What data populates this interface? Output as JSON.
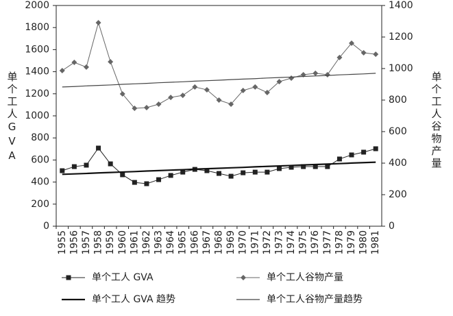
{
  "chart_data": {
    "type": "line",
    "y_label": "单个工人GVA",
    "y2_label": "单个工人谷物产量",
    "categories": [
      "1955",
      "1956",
      "1957",
      "1958",
      "1959",
      "1960",
      "1961",
      "1962",
      "1963",
      "1964",
      "1965",
      "1966",
      "1967",
      "1968",
      "1969",
      "1970",
      "1971",
      "1972",
      "1973",
      "1974",
      "1975",
      "1976",
      "1977",
      "1978",
      "1979",
      "1980",
      "1981"
    ],
    "series": [
      {
        "name": "单个工人 GVA",
        "color": "#222222",
        "marker": "square",
        "line_width": 1,
        "values": [
          503,
          540,
          553,
          708,
          565,
          466,
          397,
          385,
          422,
          460,
          490,
          515,
          503,
          478,
          453,
          484,
          490,
          490,
          522,
          534,
          540,
          540,
          540,
          609,
          646,
          671,
          702
        ]
      },
      {
        "name": "单个工人谷物产量",
        "color": "#666666",
        "marker": "diamond",
        "line_width": 1,
        "axis": "y2",
        "values": [
          987,
          1039,
          1009,
          1291,
          1043,
          839,
          748,
          752,
          774,
          817,
          830,
          883,
          865,
          800,
          774,
          861,
          883,
          848,
          917,
          939,
          961,
          970,
          961,
          1070,
          1161,
          1100,
          1091
        ]
      },
      {
        "name": "单个工人 GVA 趋势",
        "color": "#111111",
        "marker": "none",
        "line_width": 2.2,
        "values": [
          470,
          474,
          478,
          483,
          487,
          491,
          495,
          500,
          504,
          508,
          512,
          517,
          521,
          525,
          529,
          533,
          538,
          542,
          546,
          550,
          555,
          559,
          563,
          567,
          572,
          576,
          580
        ]
      },
      {
        "name": "单个工人谷物产量趋势",
        "color": "#444444",
        "marker": "none",
        "line_width": 1.2,
        "axis": "y2",
        "values": [
          883,
          886,
          890,
          893,
          896,
          900,
          903,
          906,
          910,
          913,
          916,
          920,
          923,
          926,
          930,
          933,
          936,
          940,
          943,
          946,
          950,
          953,
          956,
          960,
          963,
          966,
          970
        ]
      }
    ],
    "ylim": [
      0,
      2000
    ],
    "yticks": [
      0,
      200,
      400,
      600,
      800,
      1000,
      1200,
      1400,
      1600,
      1800,
      2000
    ],
    "y2lim": [
      0,
      1400
    ],
    "y2ticks": [
      0,
      200,
      400,
      600,
      800,
      1000,
      1200,
      1400
    ],
    "legend": "bottom"
  }
}
